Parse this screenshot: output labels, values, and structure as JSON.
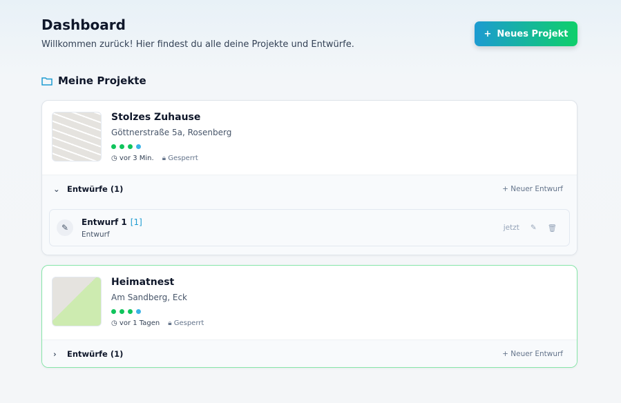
{
  "header": {
    "title": "Dashboard",
    "subtitle": "Willkommen zurück! Hier findest du alle deine Projekte und Entwürfe.",
    "new_project": "Neues Projekt"
  },
  "section": {
    "title": "Meine Projekte"
  },
  "colors": {
    "accent": "#1d9bd1",
    "green": "#10c45c"
  },
  "projects": [
    {
      "name": "Stolzes Zuhause",
      "address": "Göttnerstraße 5a, Rosenberg",
      "time": "vor 3 Min.",
      "status": "Gesperrt",
      "drafts_label": "Entwürfe (1)",
      "new_draft": "Neuer Entwurf",
      "expanded": true,
      "drafts": [
        {
          "name": "Entwurf 1",
          "tag": "[1]",
          "type": "Entwurf",
          "time": "jetzt"
        }
      ]
    },
    {
      "name": "Heimatnest",
      "address": "Am Sandberg, Eck",
      "time": "vor 1 Tagen",
      "status": "Gesperrt",
      "drafts_label": "Entwürfe (1)",
      "new_draft": "Neuer Entwurf",
      "expanded": false,
      "selected": true
    }
  ]
}
